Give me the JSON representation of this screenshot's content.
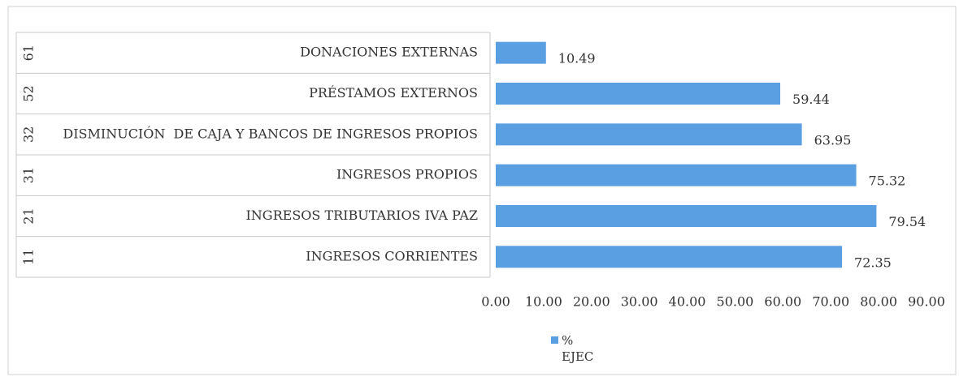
{
  "chart_data": {
    "type": "bar",
    "orientation": "horizontal",
    "codes": [
      "61",
      "52",
      "32",
      "31",
      "21",
      "11"
    ],
    "categories": [
      "DONACIONES EXTERNAS",
      "PRÉSTAMOS EXTERNOS",
      "DISMINUCIÓN  DE CAJA Y BANCOS DE INGRESOS PROPIOS",
      "INGRESOS PROPIOS",
      "INGRESOS TRIBUTARIOS IVA PAZ",
      "INGRESOS CORRIENTES"
    ],
    "series": [
      {
        "name": "% EJEC",
        "color": "#5b9fe3",
        "values": [
          10.49,
          59.44,
          63.95,
          75.32,
          79.54,
          72.35
        ]
      }
    ],
    "xlim": [
      0,
      90
    ],
    "xticks": [
      {
        "value": 0,
        "label": "0.00"
      },
      {
        "value": 10,
        "label": "10.00"
      },
      {
        "value": 20,
        "label": "20.00"
      },
      {
        "value": 30,
        "label": "30.00"
      },
      {
        "value": 40,
        "label": "40.00"
      },
      {
        "value": 50,
        "label": "50.00"
      },
      {
        "value": 60,
        "label": "60.00"
      },
      {
        "value": 70,
        "label": "70.00"
      },
      {
        "value": 80,
        "label": "80.00"
      },
      {
        "value": 90,
        "label": "90.00"
      }
    ],
    "legend": "bottom"
  }
}
